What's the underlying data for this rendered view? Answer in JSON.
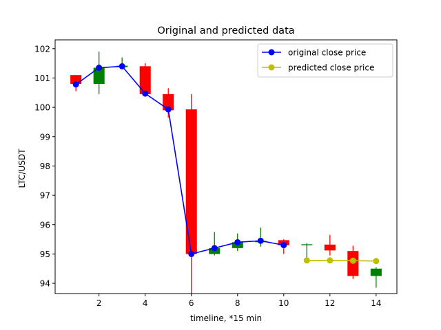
{
  "chart_data": {
    "type": "candlestick-line",
    "title": "Original and predicted data",
    "xlabel": "timeline, *15 min",
    "ylabel": "LTC/USDT",
    "xlim": [
      0.1,
      14.9
    ],
    "ylim": [
      93.65,
      102.3
    ],
    "xticks": [
      2,
      4,
      6,
      8,
      10,
      12,
      14
    ],
    "yticks": [
      94,
      95,
      96,
      97,
      98,
      99,
      100,
      101,
      102
    ],
    "grid": false,
    "legend_position": "top-right",
    "candles": [
      {
        "x": 1,
        "open": 101.1,
        "close": 100.8,
        "high": 101.1,
        "low": 100.55,
        "color": "#ff0000"
      },
      {
        "x": 2,
        "open": 100.8,
        "close": 101.35,
        "high": 101.9,
        "low": 100.45,
        "color": "#008000"
      },
      {
        "x": 3,
        "open": 101.37,
        "close": 101.42,
        "high": 101.7,
        "low": 101.3,
        "color": "#008000"
      },
      {
        "x": 4,
        "open": 101.4,
        "close": 100.45,
        "high": 101.5,
        "low": 100.45,
        "color": "#ff0000"
      },
      {
        "x": 5,
        "open": 100.45,
        "close": 99.9,
        "high": 100.65,
        "low": 99.65,
        "color": "#ff0000"
      },
      {
        "x": 6,
        "open": 99.93,
        "close": 95.0,
        "high": 100.45,
        "low": 93.65,
        "color": "#ff0000"
      },
      {
        "x": 7,
        "open": 95.0,
        "close": 95.2,
        "high": 95.75,
        "low": 94.95,
        "color": "#008000"
      },
      {
        "x": 8,
        "open": 95.2,
        "close": 95.4,
        "high": 95.7,
        "low": 95.1,
        "color": "#008000"
      },
      {
        "x": 9,
        "open": 95.4,
        "close": 95.45,
        "high": 95.9,
        "low": 95.25,
        "color": "#008000"
      },
      {
        "x": 10,
        "open": 95.47,
        "close": 95.3,
        "high": 95.5,
        "low": 95.0,
        "color": "#ff0000"
      },
      {
        "x": 11,
        "open": 95.33,
        "close": 95.3,
        "high": 95.37,
        "low": 94.8,
        "color": "#008000"
      },
      {
        "x": 12,
        "open": 95.32,
        "close": 95.12,
        "high": 95.65,
        "low": 94.95,
        "color": "#ff0000"
      },
      {
        "x": 13,
        "open": 95.1,
        "close": 94.25,
        "high": 95.28,
        "low": 94.15,
        "color": "#ff0000"
      },
      {
        "x": 14,
        "open": 94.25,
        "close": 94.5,
        "high": 94.55,
        "low": 93.85,
        "color": "#008000"
      }
    ],
    "series": [
      {
        "name": "original close price",
        "color": "#0000ff",
        "x": [
          1,
          2,
          3,
          4,
          5,
          6,
          7,
          8,
          9,
          10
        ],
        "values": [
          100.78,
          101.35,
          101.4,
          100.47,
          99.93,
          95.0,
          95.2,
          95.4,
          95.45,
          95.3
        ]
      },
      {
        "name": "predicted close price",
        "color": "#bfbf00",
        "x": [
          11,
          12,
          13,
          14
        ],
        "values": [
          94.78,
          94.78,
          94.77,
          94.76
        ]
      }
    ]
  }
}
